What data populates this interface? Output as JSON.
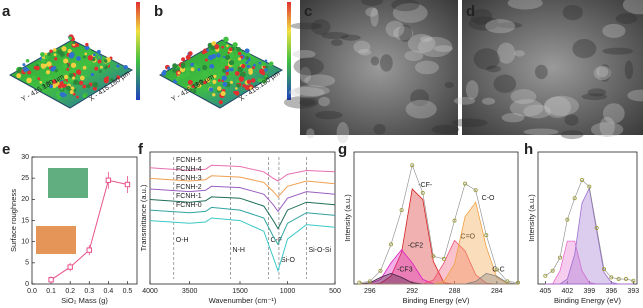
{
  "panel_labels": [
    "a",
    "b",
    "c",
    "d",
    "e",
    "f",
    "g",
    "h"
  ],
  "surface_axes": {
    "x": "X - 415.180 µm",
    "y": "Y - 415.180 µm"
  },
  "chart_data": [
    {
      "type": "scatter",
      "xlabel": "SiO₂ Mass (g)",
      "ylabel": "Surface roughness",
      "x": [
        0.1,
        0.2,
        0.3,
        0.4,
        0.5
      ],
      "values": [
        1,
        4,
        8,
        24.5,
        23.5
      ],
      "errors": [
        0.8,
        1,
        1.2,
        2,
        2
      ],
      "color": "#e8508a",
      "xlim": [
        0,
        0.55
      ],
      "ylim": [
        0,
        30
      ],
      "xticks": [
        {
          "value": 0,
          "label": "0.0"
        },
        0.1,
        0.2,
        0.3,
        0.4,
        0.5
      ],
      "yticks": [
        0,
        5,
        10,
        15,
        20,
        25,
        30
      ]
    },
    {
      "type": "line",
      "xlabel": "Wavenumber (cm⁻¹)",
      "ylabel": "Transmittance (a.u.)",
      "x": [
        4000,
        3500,
        3300,
        1800,
        1500,
        1250,
        1150,
        1100,
        1000,
        800,
        500
      ],
      "xlim": [
        4000,
        500
      ],
      "xbreak": [
        3300,
        1800
      ],
      "ylim": [
        0,
        10
      ],
      "xticks": [
        4000,
        3500,
        1500,
        1000,
        500
      ],
      "series": [
        {
          "name": "FCNH-5",
          "color": "#e86fb0",
          "values": [
            8.8,
            8.6,
            8.7,
            9.0,
            8.9,
            8.5,
            8.0,
            7.8,
            8.3,
            8.6,
            8.5
          ]
        },
        {
          "name": "FCNH-4",
          "color": "#f0a050",
          "values": [
            8.0,
            7.8,
            7.9,
            8.2,
            8.1,
            7.7,
            7.0,
            6.6,
            7.4,
            7.8,
            7.6
          ]
        },
        {
          "name": "FCNH-3",
          "color": "#9b5fc0",
          "values": [
            7.2,
            7.0,
            7.1,
            7.4,
            7.3,
            6.8,
            6.0,
            5.5,
            6.5,
            7.0,
            6.8
          ]
        },
        {
          "name": "FCNH-2",
          "color": "#1f6e5a",
          "values": [
            6.4,
            6.2,
            6.3,
            6.6,
            6.5,
            5.9,
            4.8,
            4.2,
            5.6,
            6.2,
            6.0
          ]
        },
        {
          "name": "FCNH-1",
          "color": "#2fa4a0",
          "values": [
            5.6,
            5.4,
            5.5,
            5.8,
            5.6,
            5.0,
            3.6,
            3.0,
            4.6,
            5.4,
            5.2
          ]
        },
        {
          "name": "FCNH-0",
          "color": "#3cc8c8",
          "values": [
            4.8,
            4.6,
            4.7,
            5.0,
            4.8,
            4.0,
            2.0,
            1.0,
            3.4,
            4.5,
            4.3
          ]
        }
      ],
      "annotations": [
        {
          "text": "O-H",
          "x": 3700
        },
        {
          "text": "N-H",
          "x": 1600
        },
        {
          "text": "C-F",
          "x": 1200
        },
        {
          "text": "Si-O",
          "x": 1090
        },
        {
          "text": "Si-O-Si",
          "x": 800
        }
      ]
    },
    {
      "type": "area",
      "xlabel": "Binding Energy (eV)",
      "ylabel": "Intensity (a.u.)",
      "x": [
        297,
        296,
        295,
        294,
        293,
        292,
        291,
        290,
        289,
        288,
        287,
        286,
        285,
        284,
        283,
        282
      ],
      "xlim": [
        297.5,
        282
      ],
      "ylim": [
        0,
        10
      ],
      "xticks": [
        296,
        292,
        288,
        284
      ],
      "points": {
        "color": "#9a9a3a",
        "values": [
          0.1,
          0.2,
          1.0,
          3.0,
          5.6,
          9.0,
          6.9,
          2.1,
          1.9,
          4.8,
          7.6,
          7.1,
          3.7,
          1.1,
          0.2,
          0.1
        ]
      },
      "series": [
        {
          "name": "-CF-",
          "color": "#d62020",
          "values": [
            0,
            0,
            0.06,
            0.6,
            2.4,
            7.2,
            6.4,
            1.7,
            0.1,
            0,
            0,
            0,
            0,
            0,
            0,
            0
          ]
        },
        {
          "name": "-CF2",
          "color": "#e020c0",
          "values": [
            0,
            0.03,
            0.35,
            1.6,
            2.6,
            1.6,
            0.35,
            0.03,
            0,
            0,
            0,
            0,
            0,
            0,
            0,
            0
          ]
        },
        {
          "name": "-CF3",
          "color": "#402040",
          "values": [
            0.01,
            0.1,
            0.5,
            0.8,
            0.5,
            0.1,
            0.01,
            0,
            0,
            0,
            0,
            0,
            0,
            0,
            0,
            0
          ]
        },
        {
          "name": "C=O",
          "color": "#f05070",
          "values": [
            0,
            0,
            0,
            0,
            0,
            0,
            0,
            0.3,
            1.6,
            3.3,
            2.5,
            0.7,
            0.07,
            0,
            0,
            0
          ]
        },
        {
          "name": "C-O",
          "color": "#f0a040",
          "values": [
            0,
            0,
            0,
            0,
            0,
            0,
            0,
            0,
            0.2,
            1.5,
            5.1,
            6.2,
            2.8,
            0.5,
            0.03,
            0
          ]
        },
        {
          "name": "C-C",
          "color": "#808080",
          "values": [
            0,
            0,
            0,
            0,
            0,
            0,
            0,
            0,
            0,
            0,
            0,
            0.2,
            0.8,
            0.6,
            0.1,
            0
          ]
        }
      ]
    },
    {
      "type": "area",
      "xlabel": "Binding Energy (eV)",
      "ylabel": "Intensity (a.u.)",
      "x": [
        405,
        404,
        403,
        402,
        401,
        400,
        399,
        398,
        397,
        396,
        395,
        394,
        393
      ],
      "xlim": [
        406,
        392.5
      ],
      "ylim": [
        0,
        8
      ],
      "xticks": [
        405,
        402,
        399,
        396,
        393
      ],
      "points": {
        "color": "#9a9a3a",
        "values": [
          0.5,
          0.8,
          1.6,
          3.9,
          5.2,
          6.3,
          5.9,
          3.4,
          0.9,
          0.4,
          0.3,
          0.3,
          0.2
        ]
      },
      "series": [
        {
          "color": "#e86fd0",
          "values": [
            0,
            0.02,
            0.8,
            2.6,
            2.6,
            0.8,
            0.08,
            0,
            0,
            0,
            0,
            0,
            0
          ]
        },
        {
          "color": "#9a70d0",
          "values": [
            0,
            0,
            0,
            0.3,
            1.8,
            4.9,
            5.8,
            3.2,
            0.7,
            0.1,
            0,
            0,
            0
          ]
        }
      ]
    }
  ]
}
